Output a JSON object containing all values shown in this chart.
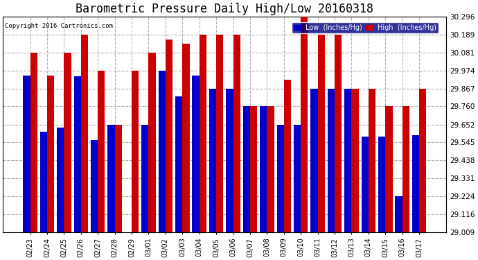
{
  "title": "Barometric Pressure Daily High/Low 20160318",
  "copyright": "Copyright 2016 Cartronics.com",
  "categories": [
    "02/23",
    "02/24",
    "02/25",
    "02/26",
    "02/27",
    "02/28",
    "02/29",
    "03/01",
    "03/02",
    "03/03",
    "03/04",
    "03/05",
    "03/06",
    "03/07",
    "03/08",
    "03/09",
    "03/10",
    "03/11",
    "03/12",
    "03/13",
    "03/14",
    "03/15",
    "03/16",
    "03/17"
  ],
  "low_values": [
    29.945,
    29.61,
    29.635,
    29.94,
    29.56,
    29.652,
    29.009,
    29.652,
    29.974,
    29.82,
    29.945,
    29.867,
    29.867,
    29.76,
    29.76,
    29.652,
    29.652,
    29.867,
    29.867,
    29.867,
    29.58,
    29.58,
    29.224,
    29.59
  ],
  "high_values": [
    30.081,
    29.945,
    30.081,
    30.189,
    29.974,
    29.652,
    29.974,
    30.081,
    30.16,
    30.135,
    30.189,
    30.189,
    30.189,
    29.76,
    29.76,
    29.92,
    30.296,
    30.189,
    30.189,
    29.867,
    29.867,
    29.76,
    29.76,
    29.867
  ],
  "ylim_low": 29.009,
  "ylim_high": 30.296,
  "yticks": [
    29.009,
    29.116,
    29.224,
    29.331,
    29.438,
    29.545,
    29.652,
    29.76,
    29.867,
    29.974,
    30.081,
    30.189,
    30.296
  ],
  "low_color": "#0000cc",
  "high_color": "#cc0000",
  "bg_color": "#ffffff",
  "grid_color": "#b0b0b0",
  "title_fontsize": 12,
  "legend_low_label": "Low  (Inches/Hg)",
  "legend_high_label": "High  (Inches/Hg)"
}
